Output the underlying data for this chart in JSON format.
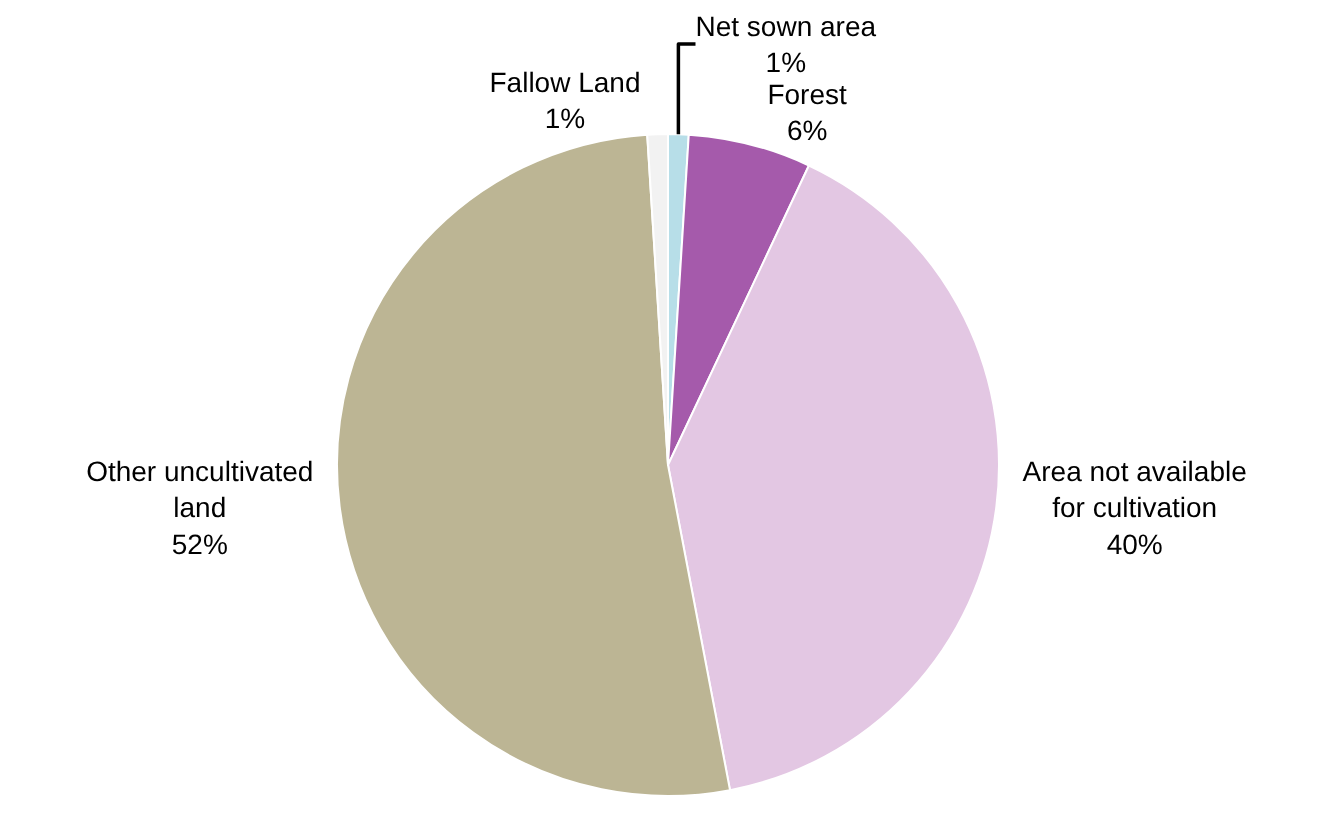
{
  "chart_data": {
    "type": "pie",
    "categories": [
      "Net sown area",
      "Forest",
      "Area not available for cultivation",
      "Other uncultivated land",
      "Fallow Land"
    ],
    "values": [
      1,
      6,
      40,
      52,
      1
    ],
    "value_labels": [
      "1%",
      "6%",
      "40%",
      "52%",
      "1%"
    ],
    "colors": [
      "#b7dee8",
      "#a55aab",
      "#e3c7e3",
      "#bcb594",
      "#f2f2f2"
    ],
    "legend": false
  }
}
